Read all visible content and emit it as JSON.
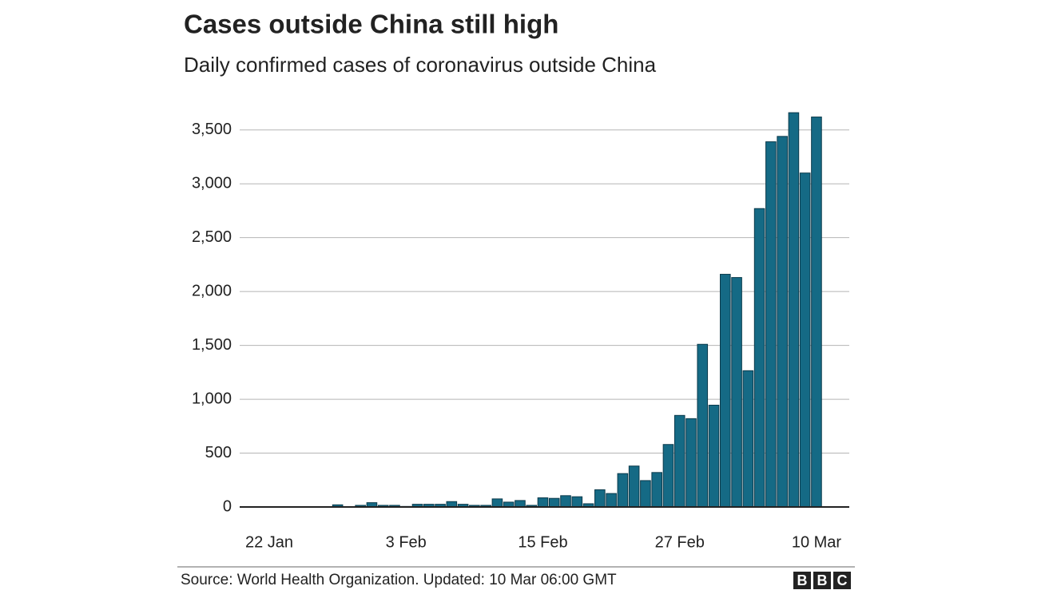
{
  "chart_data": {
    "type": "bar",
    "title": "Cases outside China still high",
    "subtitle": "Daily confirmed cases of coronavirus outside China",
    "source": "Source: World Health Organization. Updated: 10 Mar 06:00 GMT",
    "logo": [
      "B",
      "B",
      "C"
    ],
    "categories": [
      "22 Jan",
      null,
      null,
      null,
      null,
      null,
      null,
      null,
      null,
      null,
      null,
      null,
      "3 Feb",
      null,
      null,
      null,
      null,
      null,
      null,
      null,
      null,
      null,
      null,
      null,
      "15 Feb",
      null,
      null,
      null,
      null,
      null,
      null,
      null,
      null,
      null,
      null,
      null,
      "27 Feb",
      null,
      null,
      null,
      null,
      null,
      null,
      null,
      null,
      null,
      null,
      null,
      "10 Mar"
    ],
    "values": [
      0,
      0,
      0,
      2,
      3,
      3,
      20,
      2,
      15,
      40,
      15,
      15,
      5,
      25,
      25,
      25,
      50,
      25,
      15,
      15,
      75,
      45,
      60,
      15,
      85,
      80,
      105,
      95,
      30,
      160,
      125,
      310,
      380,
      245,
      320,
      580,
      850,
      820,
      1510,
      945,
      2160,
      2130,
      1265,
      2770,
      3390,
      3440,
      3660,
      3100,
      3620
    ],
    "color": "#156a85",
    "ylim": [
      0,
      3750
    ],
    "yticks": [
      0,
      500,
      {
        "value": 1000,
        "label": "1,000"
      },
      {
        "value": 1500,
        "label": "1,500"
      },
      {
        "value": 2000,
        "label": "2,000"
      },
      {
        "value": 2500,
        "label": "2,500"
      },
      {
        "value": 3000,
        "label": "3,000"
      },
      {
        "value": 3500,
        "label": "3,500"
      }
    ],
    "grid": true
  }
}
